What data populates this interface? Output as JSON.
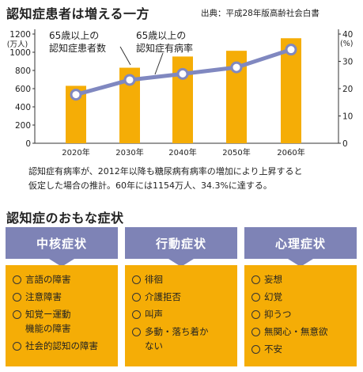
{
  "header": {
    "title": "認知症患者は増える一方",
    "source": "出典：平成28年版高齢社会白書"
  },
  "chart_data": {
    "type": "bar+line",
    "categories": [
      "2020年",
      "2030年",
      "2040年",
      "2050年",
      "2060年"
    ],
    "series": [
      {
        "name": "65歳以上の認知症患者数",
        "type": "bar",
        "axis": "left",
        "values": [
          631,
          830,
          953,
          1016,
          1154
        ]
      },
      {
        "name": "65歳以上の認知症有病率",
        "type": "line",
        "axis": "right",
        "values": [
          17.8,
          23.2,
          25.4,
          27.8,
          34.3
        ]
      }
    ],
    "y_left": {
      "label": "(万人)",
      "ticks": [
        0,
        200,
        400,
        600,
        800,
        1000,
        1200
      ],
      "range": [
        0,
        1200
      ]
    },
    "y_right": {
      "label": "(%)",
      "ticks": [
        0,
        10,
        20,
        30,
        40
      ],
      "range": [
        0,
        40
      ]
    },
    "colors": {
      "bar": "#f5ad06",
      "line": "#8088c0",
      "point_fill": "#ffffff"
    },
    "annotations": {
      "bar_label": [
        "65歳以上の",
        "認知症患者数"
      ],
      "line_label": [
        "65歳以上の",
        "認知症有病率"
      ]
    },
    "grid": false
  },
  "note": {
    "line1": "認知症有病率が、2012年以降も糖尿病有病率の増加により上昇すると",
    "line2": "仮定した場合の推計。60年には1154万人、34.3%に達する。"
  },
  "symptoms": {
    "title": "認知症のおもな症状",
    "columns": [
      {
        "heading": "中核症状",
        "items": [
          "言語の障害",
          "注意障害",
          "知覚ー運動\n機能の障害",
          "社会的認知の障害"
        ]
      },
      {
        "heading": "行動症状",
        "items": [
          "徘徊",
          "介護拒否",
          "叫声",
          "多動・落ち着か\nない"
        ]
      },
      {
        "heading": "心理症状",
        "items": [
          "妄想",
          "幻覚",
          "抑うつ",
          "無関心・無意欲",
          "不安"
        ]
      }
    ],
    "colors": {
      "header": "#7e83b6",
      "body": "#f5ad06"
    }
  }
}
